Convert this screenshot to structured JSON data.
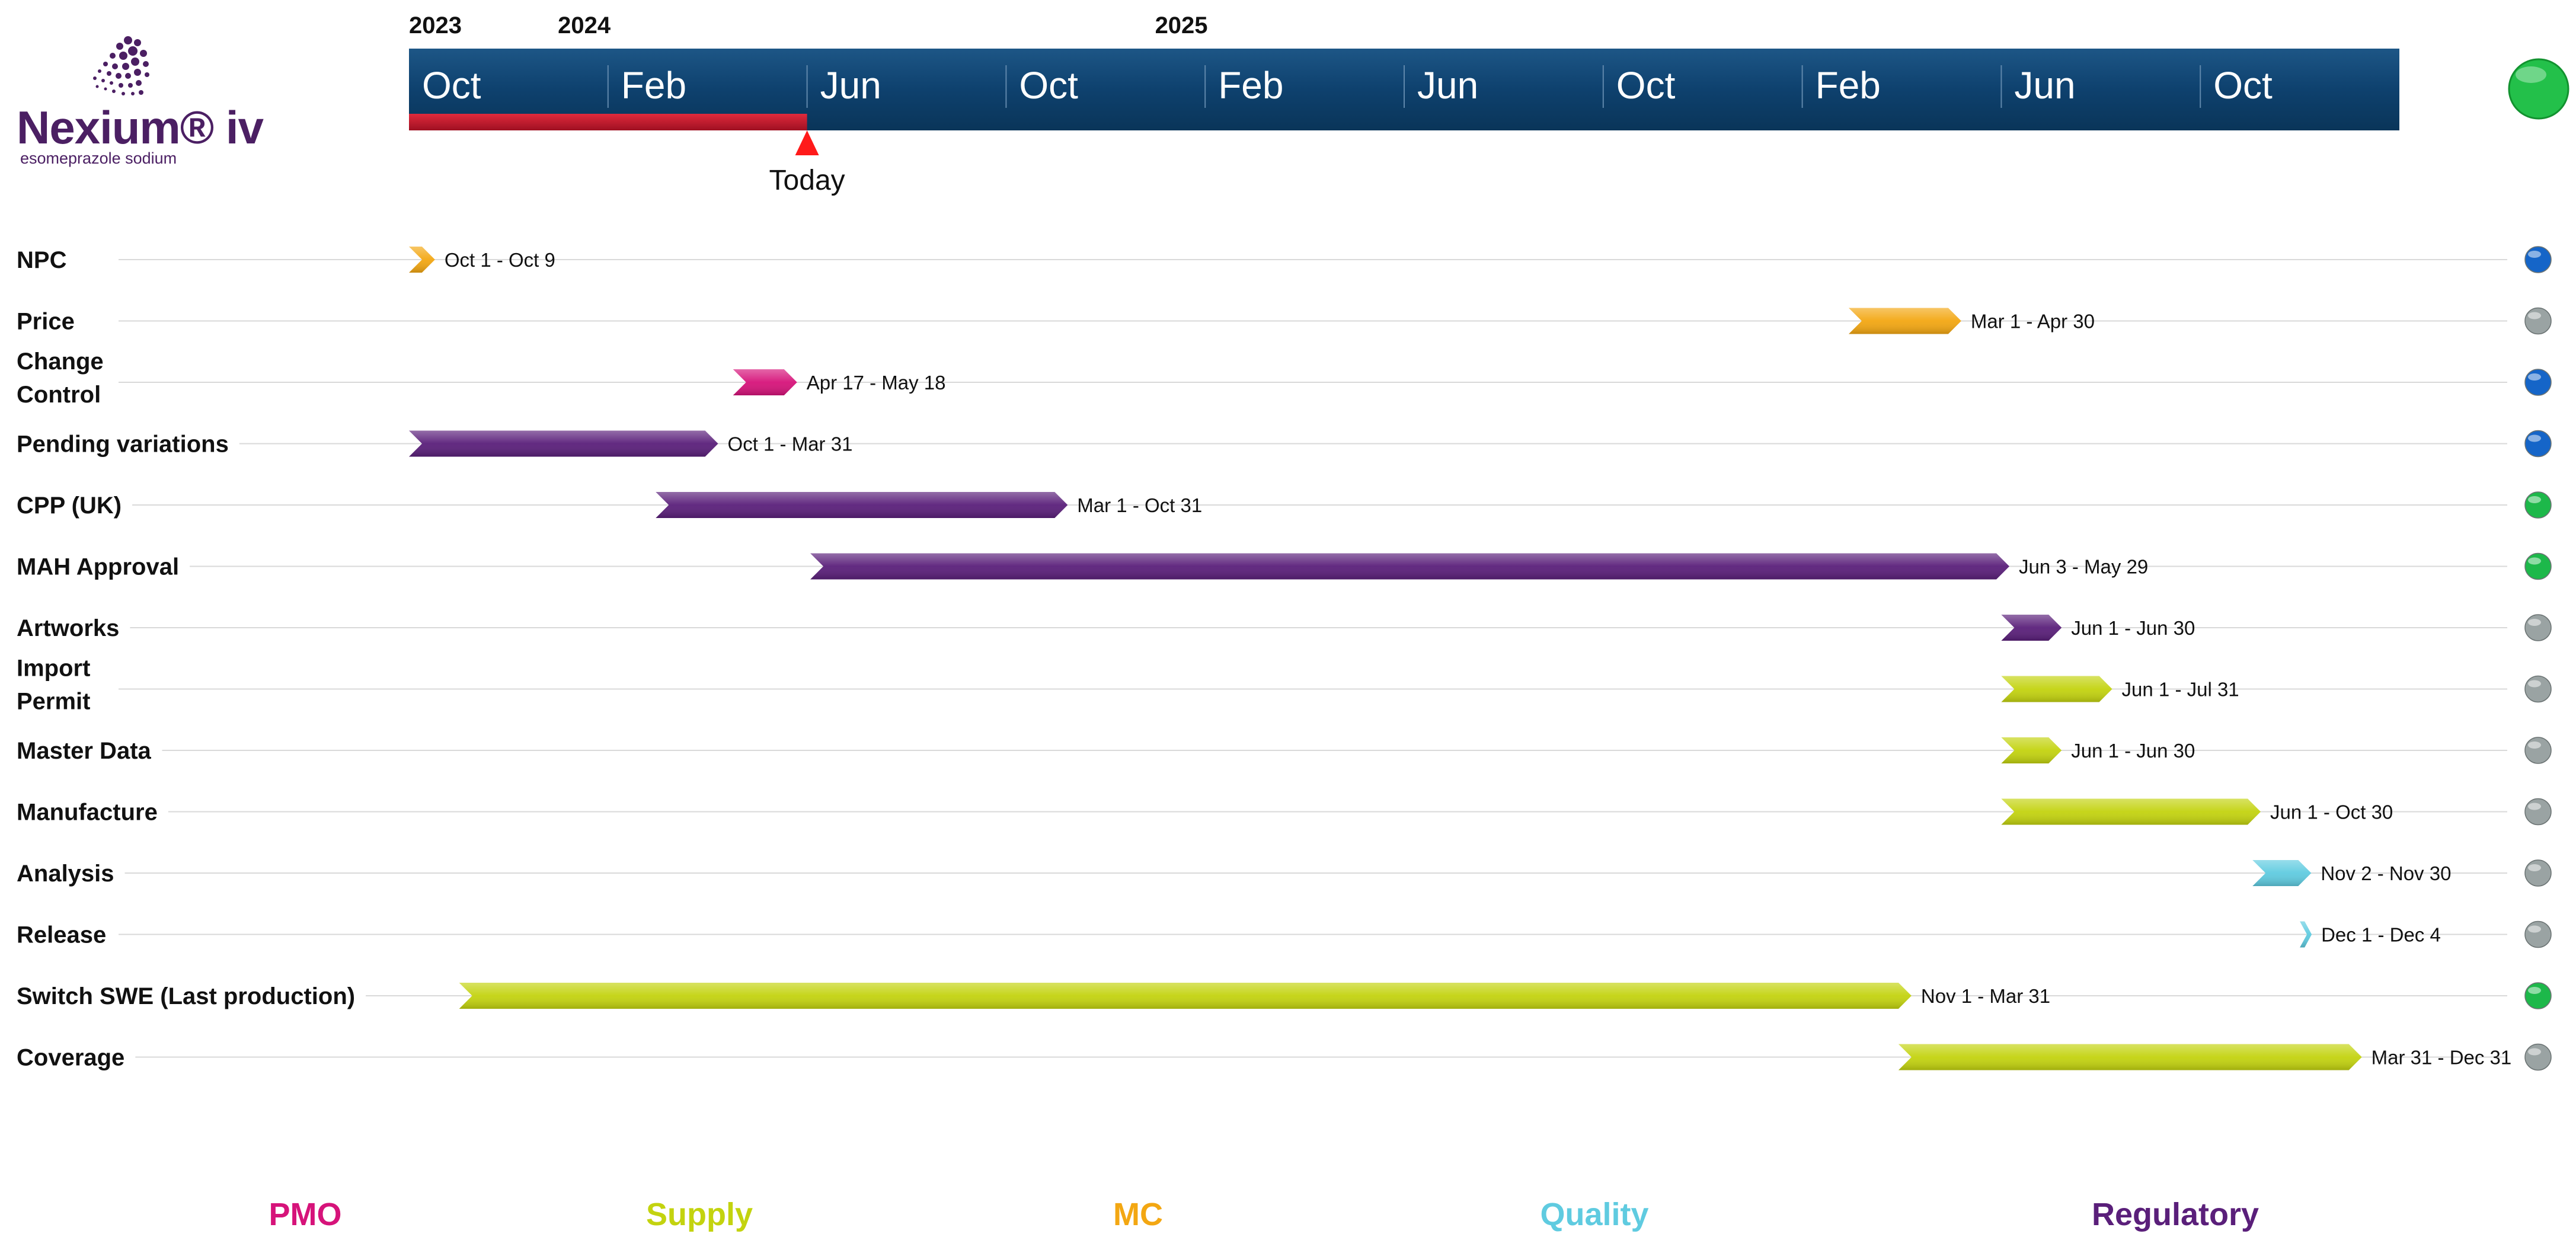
{
  "logo": {
    "name": "Nexium® iv",
    "subtitle": "esomeprazole sodium"
  },
  "chart_data": {
    "type": "gantt",
    "time_axis": {
      "start": "2023-10-01",
      "end": "2026-01-01",
      "years": [
        {
          "label": "2023",
          "date": "2023-10-01"
        },
        {
          "label": "2024",
          "date": "2024-01-01"
        },
        {
          "label": "2025",
          "date": "2025-01-01"
        }
      ],
      "months": [
        {
          "label": "Oct",
          "date": "2023-10-01"
        },
        {
          "label": "Feb",
          "date": "2024-02-01"
        },
        {
          "label": "Jun",
          "date": "2024-06-01"
        },
        {
          "label": "Oct",
          "date": "2024-10-01"
        },
        {
          "label": "Feb",
          "date": "2025-02-01"
        },
        {
          "label": "Jun",
          "date": "2025-06-01"
        },
        {
          "label": "Oct",
          "date": "2025-10-01"
        },
        {
          "label": "Feb",
          "date": "2026-02-01"
        },
        {
          "label": "Jun",
          "date": "2026-06-01"
        },
        {
          "label": "Oct",
          "date": "2026-10-01"
        }
      ],
      "bar_color": "#0e416e",
      "progress_color": "#c0182e",
      "overall_status_color": "#23c04a"
    },
    "today": {
      "label": "Today",
      "date": "2024-06-01",
      "color": "#ff1a1a"
    },
    "tasks": [
      {
        "name": "NPC",
        "start": "2023-10-01",
        "end": "2023-10-09",
        "label": "Oct 1 - Oct 9",
        "category": "MC",
        "status": "blue"
      },
      {
        "name": "Price",
        "start": "2026-03-01",
        "end": "2026-04-30",
        "label": "Mar 1 - Apr 30",
        "category": "MC",
        "status": "gray"
      },
      {
        "name": "Change\nControl",
        "start": "2024-04-17",
        "end": "2024-05-18",
        "label": "Apr 17 - May 18",
        "category": "PMO",
        "status": "blue"
      },
      {
        "name": "Pending variations",
        "start": "2023-10-01",
        "end": "2024-03-31",
        "label": "Oct 1 - Mar 31",
        "category": "Regulatory",
        "status": "blue"
      },
      {
        "name": "CPP (UK)",
        "start": "2024-03-01",
        "end": "2024-10-31",
        "label": "Mar 1 - Oct 31",
        "category": "Regulatory",
        "status": "green"
      },
      {
        "name": "MAH Approval",
        "start": "2024-06-03",
        "end": "2026-05-29",
        "label": "Jun 3 - May 29",
        "category": "Regulatory",
        "status": "green"
      },
      {
        "name": "Artworks",
        "start": "2026-06-01",
        "end": "2026-06-30",
        "label": "Jun 1 - Jun 30",
        "category": "Regulatory",
        "status": "gray"
      },
      {
        "name": "Import\nPermit",
        "start": "2026-06-01",
        "end": "2026-07-31",
        "label": "Jun 1 - Jul 31",
        "category": "Supply",
        "status": "gray"
      },
      {
        "name": "Master Data",
        "start": "2026-06-01",
        "end": "2026-06-30",
        "label": "Jun 1 - Jun 30",
        "category": "Supply",
        "status": "gray"
      },
      {
        "name": "Manufacture",
        "start": "2026-06-01",
        "end": "2026-10-30",
        "label": "Jun 1 - Oct 30",
        "category": "Supply",
        "status": "gray"
      },
      {
        "name": "Analysis",
        "start": "2026-11-02",
        "end": "2026-11-30",
        "label": "Nov 2 - Nov 30",
        "category": "Quality",
        "status": "gray"
      },
      {
        "name": "Release",
        "start": "2026-12-01",
        "end": "2026-12-04",
        "label": "Dec 1 - Dec 4",
        "category": "Quality",
        "status": "gray"
      },
      {
        "name": "Switch SWE (Last production)",
        "start": "2023-11-01",
        "end": "2026-03-31",
        "label": "Nov 1 - Mar 31",
        "category": "Supply",
        "status": "green"
      },
      {
        "name": "Coverage",
        "start": "2026-03-31",
        "end": "2026-12-31",
        "label": "Mar 31 - Dec 31",
        "category": "Supply",
        "status": "gray"
      }
    ],
    "categories": [
      {
        "name": "PMO",
        "color": "#d6137a"
      },
      {
        "name": "Supply",
        "color": "#c3d30f"
      },
      {
        "name": "MC",
        "color": "#f3a712"
      },
      {
        "name": "Quality",
        "color": "#5fcbe0"
      },
      {
        "name": "Regulatory",
        "color": "#5a1f7a"
      }
    ],
    "status_colors": {
      "blue": "#1565c8",
      "green": "#1db84a",
      "gray": "#9aa3a3"
    }
  }
}
